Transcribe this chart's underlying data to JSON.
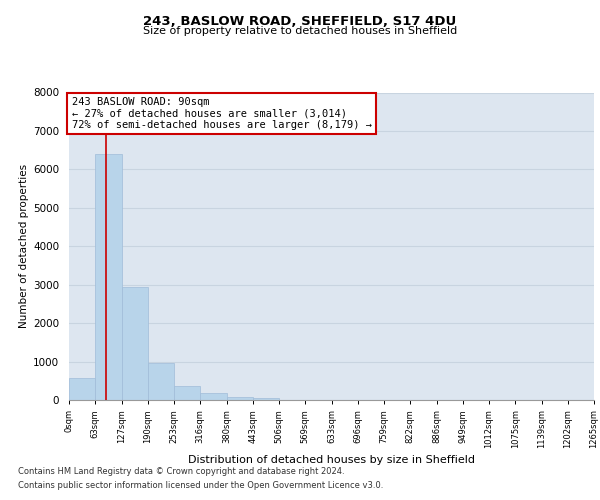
{
  "title1": "243, BASLOW ROAD, SHEFFIELD, S17 4DU",
  "title2": "Size of property relative to detached houses in Sheffield",
  "xlabel": "Distribution of detached houses by size in Sheffield",
  "ylabel": "Number of detached properties",
  "bin_edges": [
    0,
    63,
    127,
    190,
    253,
    316,
    380,
    443,
    506,
    569,
    633,
    696,
    759,
    822,
    886,
    949,
    1012,
    1075,
    1139,
    1202,
    1265
  ],
  "bar_heights": [
    560,
    6400,
    2950,
    975,
    375,
    175,
    90,
    55,
    0,
    0,
    0,
    0,
    0,
    0,
    0,
    0,
    0,
    0,
    0,
    0
  ],
  "bar_color": "#b8d4ea",
  "bar_edge_color": "#b8d4ea",
  "grid_color": "#c8d4e0",
  "bg_color": "#dde6f0",
  "property_line_x": 90,
  "property_line_color": "#cc0000",
  "annotation_text": "243 BASLOW ROAD: 90sqm\n← 27% of detached houses are smaller (3,014)\n72% of semi-detached houses are larger (8,179) →",
  "annotation_box_color": "#ffffff",
  "annotation_box_edge_color": "#cc0000",
  "ylim": [
    0,
    8000
  ],
  "yticks": [
    0,
    1000,
    2000,
    3000,
    4000,
    5000,
    6000,
    7000,
    8000
  ],
  "footnote1": "Contains HM Land Registry data © Crown copyright and database right 2024.",
  "footnote2": "Contains public sector information licensed under the Open Government Licence v3.0.",
  "tick_labels": [
    "0sqm",
    "63sqm",
    "127sqm",
    "190sqm",
    "253sqm",
    "316sqm",
    "380sqm",
    "443sqm",
    "506sqm",
    "569sqm",
    "633sqm",
    "696sqm",
    "759sqm",
    "822sqm",
    "886sqm",
    "949sqm",
    "1012sqm",
    "1075sqm",
    "1139sqm",
    "1202sqm",
    "1265sqm"
  ]
}
